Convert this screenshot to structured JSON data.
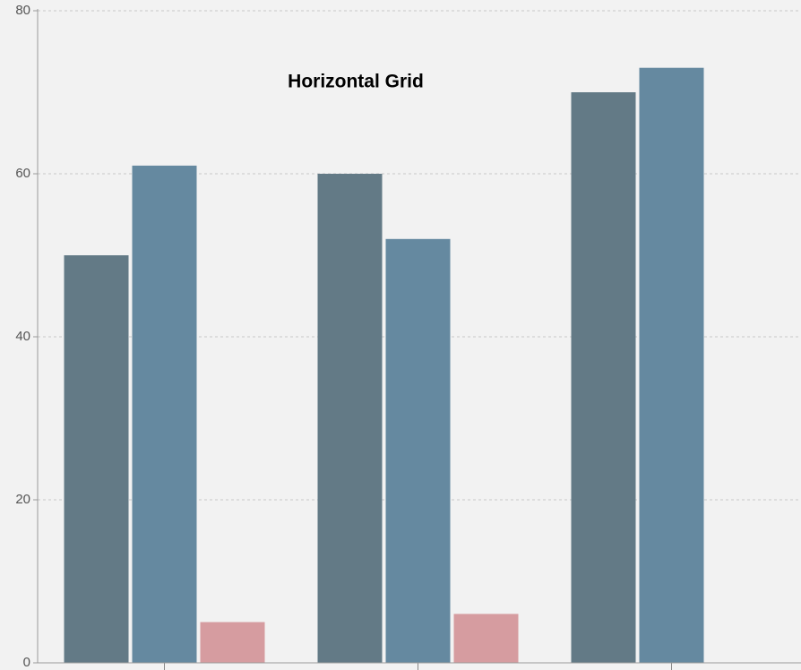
{
  "chart_data": {
    "type": "bar",
    "title": "Horizontal Grid",
    "categories": [
      null,
      null,
      null
    ],
    "series": [
      {
        "color": "#637a86",
        "values": [
          50,
          60,
          70
        ]
      },
      {
        "color": "#6589a0",
        "values": [
          61,
          52,
          73
        ]
      },
      {
        "color": "#d69ca0",
        "values": [
          5,
          6,
          null
        ]
      }
    ],
    "ylim": [
      0,
      80
    ],
    "yticks": [
      0,
      20,
      40,
      60,
      80
    ],
    "grid": "horizontal"
  }
}
